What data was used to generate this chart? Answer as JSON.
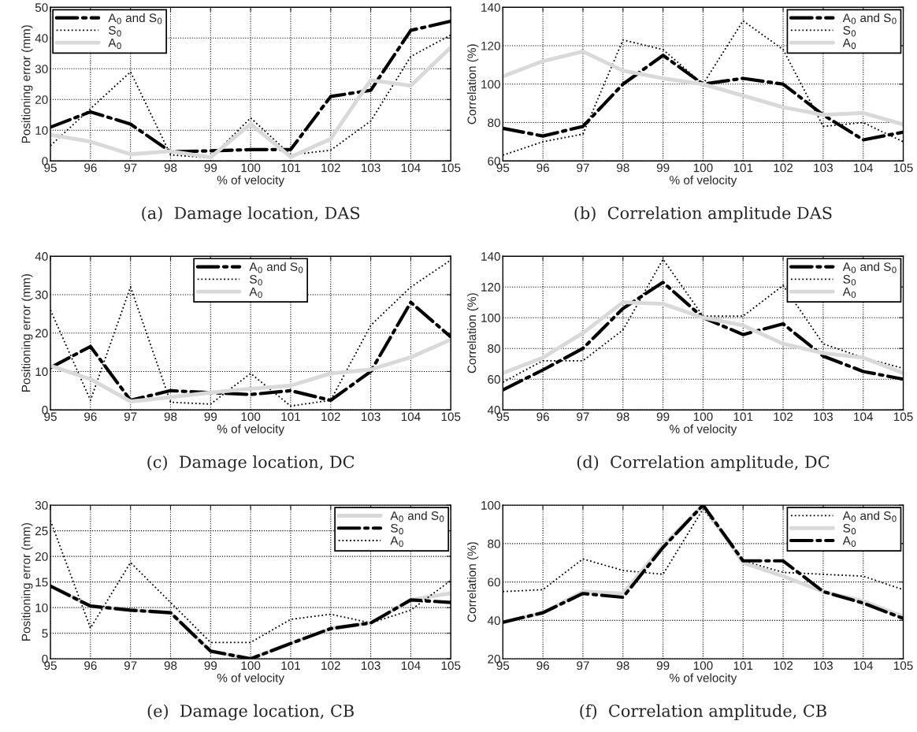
{
  "chart_data": [
    {
      "type": "line",
      "title": "(a)  Damage location, DAS",
      "xlabel": "% of velocity",
      "ylabel": "Positioning error (mm)",
      "x": [
        95,
        96,
        97,
        98,
        99,
        100,
        101,
        102,
        103,
        104,
        105
      ],
      "xlim": [
        95,
        105
      ],
      "xticks": [
        95,
        96,
        97,
        98,
        99,
        100,
        101,
        102,
        103,
        104,
        105
      ],
      "ylim": [
        0,
        50
      ],
      "yticks": [
        0,
        10,
        20,
        30,
        40,
        50
      ],
      "grid": true,
      "legend": "top left",
      "series": [
        {
          "name": "A$_{0}$ and S$_{0}$",
          "color": "#000000",
          "line_style": "dashdot",
          "values": [
            11,
            16,
            12,
            3,
            3.3,
            3.7,
            3.7,
            21,
            23,
            42.5,
            45.5
          ]
        },
        {
          "name": "S$_{0}$",
          "color": "#000000",
          "line_style": "dotted",
          "values": [
            5,
            17,
            29,
            2,
            1,
            14,
            2,
            3.5,
            13,
            34,
            41
          ]
        },
        {
          "name": "A$_{0}$",
          "color": "#d9d9d9",
          "line_style": "solid",
          "values": [
            8.5,
            6.3,
            2.2,
            3.2,
            1.2,
            12,
            1.3,
            7.2,
            26.3,
            24.5,
            37
          ]
        }
      ]
    },
    {
      "type": "line",
      "title": "(b)  Correlation amplitude DAS",
      "xlabel": "% of velocity",
      "ylabel": "Correlation (%)",
      "x": [
        95,
        96,
        97,
        98,
        99,
        100,
        101,
        102,
        103,
        104,
        105
      ],
      "xlim": [
        95,
        105
      ],
      "xticks": [
        95,
        96,
        97,
        98,
        99,
        100,
        101,
        102,
        103,
        104,
        105
      ],
      "ylim": [
        60,
        140
      ],
      "yticks": [
        60,
        80,
        100,
        120,
        140
      ],
      "grid": true,
      "legend": "top right",
      "series": [
        {
          "name": "A$_{0}$ and S$_{0}$",
          "color": "#000000",
          "line_style": "dashdot",
          "values": [
            77,
            73,
            78,
            100,
            115,
            100,
            103,
            100,
            84,
            71,
            75
          ]
        },
        {
          "name": "S$_{0}$",
          "color": "#000000",
          "line_style": "dotted",
          "values": [
            63,
            70,
            74,
            123,
            118,
            100,
            133,
            118,
            78,
            80,
            70
          ]
        },
        {
          "name": "A$_{0}$",
          "color": "#d9d9d9",
          "line_style": "solid",
          "values": [
            104,
            112,
            117,
            107,
            103,
            100,
            94,
            88,
            84,
            85,
            79
          ]
        }
      ]
    },
    {
      "type": "line",
      "title": "(c)  Damage location, DC",
      "xlabel": "% of velocity",
      "ylabel": "Positioning error (mm)",
      "x": [
        95,
        96,
        97,
        98,
        99,
        100,
        101,
        102,
        103,
        104,
        105
      ],
      "xlim": [
        95,
        105
      ],
      "xticks": [
        95,
        96,
        97,
        98,
        99,
        100,
        101,
        102,
        103,
        104,
        105
      ],
      "ylim": [
        0,
        40
      ],
      "yticks": [
        0,
        10,
        20,
        30,
        40
      ],
      "grid": true,
      "legend": "top",
      "series": [
        {
          "name": "A$_{0}$ and S$_{0}$",
          "color": "#000000",
          "line_style": "dashdot",
          "values": [
            11,
            16.5,
            2.5,
            5,
            4.5,
            4,
            5,
            2.5,
            10,
            28,
            19
          ]
        },
        {
          "name": "S$_{0}$",
          "color": "#000000",
          "line_style": "dotted",
          "values": [
            26,
            2.5,
            32,
            2,
            1.5,
            9.5,
            1,
            2.5,
            22,
            32,
            39
          ]
        },
        {
          "name": "A$_{0}$",
          "color": "#d9d9d9",
          "line_style": "solid",
          "values": [
            11.5,
            8,
            2.2,
            3.3,
            4.5,
            5.5,
            6.3,
            9.5,
            10.5,
            13.7,
            18.3
          ]
        }
      ]
    },
    {
      "type": "line",
      "title": "(d)  Correlation amplitude, DC",
      "xlabel": "% of velocity",
      "ylabel": "Correlation (%)",
      "x": [
        95,
        96,
        97,
        98,
        99,
        100,
        101,
        102,
        103,
        104,
        105
      ],
      "xlim": [
        95,
        105
      ],
      "xticks": [
        95,
        96,
        97,
        98,
        99,
        100,
        101,
        102,
        103,
        104,
        105
      ],
      "ylim": [
        40,
        140
      ],
      "yticks": [
        40,
        60,
        80,
        100,
        120,
        140
      ],
      "grid": true,
      "legend": "top right",
      "series": [
        {
          "name": "A$_{0}$ and S$_{0}$",
          "color": "#000000",
          "line_style": "dashdot",
          "values": [
            53,
            66,
            80,
            106,
            123,
            100,
            89,
            96,
            75,
            65,
            60
          ]
        },
        {
          "name": "S$_{0}$",
          "color": "#000000",
          "line_style": "dotted",
          "values": [
            58,
            72,
            72,
            92,
            138,
            101,
            101,
            121,
            83,
            74,
            67
          ]
        },
        {
          "name": "A$_{0}$",
          "color": "#d9d9d9",
          "line_style": "solid",
          "values": [
            64,
            74,
            90,
            110,
            109,
            100,
            95,
            83,
            77,
            74,
            64
          ]
        }
      ]
    },
    {
      "type": "line",
      "title": "(e)  Damage location, CB",
      "xlabel": "% of velocity",
      "ylabel": "Positioning error (mm)",
      "x": [
        95,
        96,
        97,
        98,
        99,
        100,
        101,
        102,
        103,
        104,
        105
      ],
      "xlim": [
        95,
        105
      ],
      "xticks": [
        95,
        96,
        97,
        98,
        99,
        100,
        101,
        102,
        103,
        104,
        105
      ],
      "ylim": [
        0,
        30
      ],
      "yticks": [
        0,
        5,
        10,
        15,
        20,
        25,
        30
      ],
      "grid": true,
      "legend": "top right",
      "series": [
        {
          "name": "A$_{0}$ and S$_{0}$",
          "color": "#d9d9d9",
          "line_style": "solid",
          "values": [
            14.2,
            10.3,
            9.5,
            9,
            1.5,
            0,
            3,
            5.9,
            7,
            11.5,
            12.8
          ]
        },
        {
          "name": "S$_{0}$",
          "color": "#000000",
          "line_style": "dashdot",
          "values": [
            14.2,
            10.3,
            9.5,
            9,
            1.5,
            0,
            3,
            5.9,
            7,
            11.5,
            11
          ]
        },
        {
          "name": "A$_{0}$",
          "color": "#000000",
          "line_style": "dotted",
          "values": [
            27,
            6,
            18.8,
            11,
            3.2,
            3.2,
            7.7,
            8.7,
            7,
            9.5,
            15.3
          ]
        }
      ]
    },
    {
      "type": "line",
      "title": "(f)  Correlation amplitude, CB",
      "xlabel": "% of velocity",
      "ylabel": "Correlation (%)",
      "x": [
        95,
        96,
        97,
        98,
        99,
        100,
        101,
        102,
        103,
        104,
        105
      ],
      "xlim": [
        95,
        105
      ],
      "xticks": [
        95,
        96,
        97,
        98,
        99,
        100,
        101,
        102,
        103,
        104,
        105
      ],
      "ylim": [
        20,
        100
      ],
      "yticks": [
        20,
        40,
        60,
        80,
        100
      ],
      "grid": true,
      "legend": "top right",
      "series": [
        {
          "name": "A$_{0}$ and S$_{0}$",
          "color": "#000000",
          "line_style": "dotted",
          "values": [
            55,
            56,
            72,
            66,
            64,
            98,
            71,
            65,
            null,
            63,
            56
          ]
        },
        {
          "name": "S$_{0}$",
          "color": "#d9d9d9",
          "line_style": "solid",
          "values": [
            39,
            44,
            55,
            54,
            79,
            100,
            70,
            63,
            55,
            50,
            42
          ]
        },
        {
          "name": "A$_{0}$",
          "color": "#000000",
          "line_style": "dashdot",
          "values": [
            39,
            44,
            54,
            52,
            78,
            100,
            71,
            71,
            55,
            49,
            41
          ]
        }
      ]
    }
  ]
}
